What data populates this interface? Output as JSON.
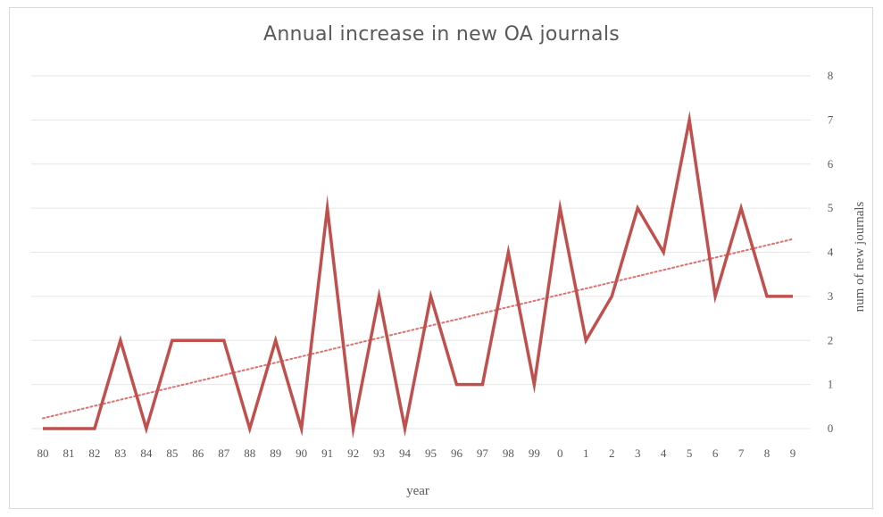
{
  "chart_data": {
    "type": "line",
    "title": "Annual increase in new OA journals",
    "xlabel": "year",
    "ylabel": "num of new journals",
    "categories": [
      "80",
      "81",
      "82",
      "83",
      "84",
      "85",
      "86",
      "87",
      "88",
      "89",
      "90",
      "91",
      "92",
      "93",
      "94",
      "95",
      "96",
      "97",
      "98",
      "99",
      "0",
      "1",
      "2",
      "3",
      "4",
      "5",
      "6",
      "7",
      "8",
      "9"
    ],
    "series": [
      {
        "values": [
          0,
          0,
          0,
          2,
          0,
          2,
          2,
          2,
          0,
          2,
          0,
          5,
          0,
          3,
          0,
          3,
          1,
          1,
          4,
          1,
          5,
          2,
          3,
          5,
          4,
          7,
          3,
          5,
          3,
          3
        ],
        "color": "#c0504d"
      }
    ],
    "trendline": {
      "type": "linear",
      "style": "dotted",
      "color": "#e07070"
    },
    "ylim": [
      0,
      8
    ],
    "yticks": [
      "0",
      "1",
      "2",
      "3",
      "4",
      "5",
      "6",
      "7",
      "8"
    ],
    "y_axis_position": "right",
    "grid": true,
    "legend": "none"
  }
}
